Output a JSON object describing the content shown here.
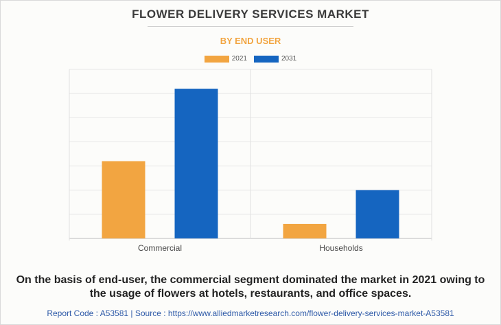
{
  "header": {
    "title": "FLOWER DELIVERY SERVICES MARKET",
    "subtitle": "BY END USER"
  },
  "legend": [
    {
      "label": "2021",
      "color": "#f2a541"
    },
    {
      "label": "2031",
      "color": "#1565c0"
    }
  ],
  "chart_data": {
    "type": "bar",
    "categories": [
      "Commercial",
      "Households"
    ],
    "series": [
      {
        "name": "2021",
        "values": [
          3.2,
          0.6
        ],
        "color": "#f2a541"
      },
      {
        "name": "2031",
        "values": [
          6.2,
          2.0
        ],
        "color": "#1565c0"
      }
    ],
    "ylim": [
      0,
      7
    ],
    "grid": true,
    "legend_position": "top-center",
    "y_tick_labels_shown": false
  },
  "caption": "On the basis of end-user, the commercial segment dominated the market in 2021 owing to the usage of flowers at hotels, restaurants, and office spaces.",
  "footer": "Report Code : A53581 | Source : https://www.alliedmarketresearch.com/flower-delivery-services-market-A53581"
}
